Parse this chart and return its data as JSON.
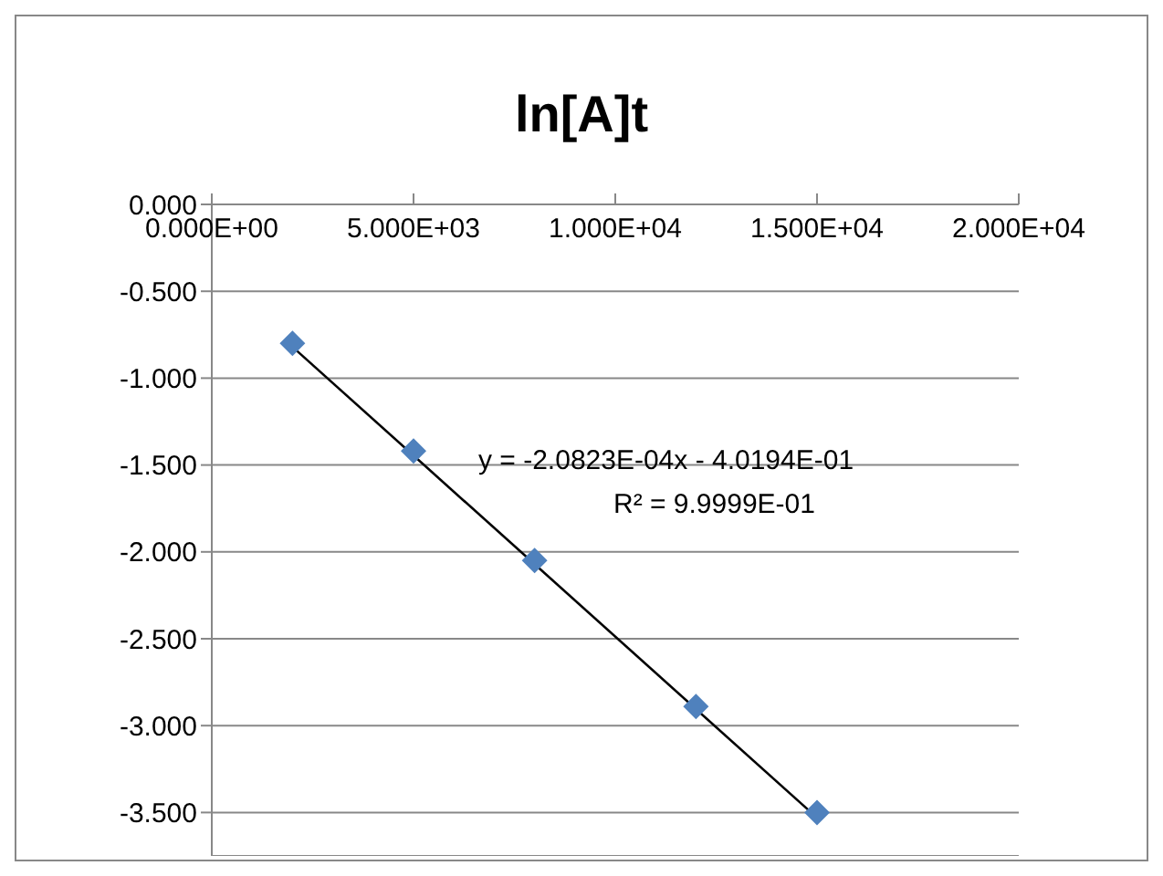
{
  "chart_data": {
    "type": "scatter",
    "title": "ln[A]t",
    "series": [
      {
        "color": "#4f81bd",
        "x": [
          2000,
          5000,
          8000,
          12000,
          15000
        ],
        "values": [
          -0.8,
          -1.42,
          -2.05,
          -2.89,
          -3.5
        ]
      },
      {
        "type": "line",
        "color": "#000000",
        "marker": "none",
        "x": [
          2000,
          15000
        ],
        "values": [
          -0.82,
          -3.53
        ]
      }
    ],
    "annotations": [
      "y = -2.0823E-04x - 4.0194E-01",
      "R² = 9.9999E-01"
    ],
    "xlim": [
      0,
      20000
    ],
    "xticks": [
      {
        "value": 0,
        "label": "0.000E+00"
      },
      {
        "value": 5000,
        "label": "5.000E+03"
      },
      {
        "value": 10000,
        "label": "1.000E+04"
      },
      {
        "value": 15000,
        "label": "1.500E+04"
      },
      {
        "value": 20000,
        "label": "2.000E+04"
      }
    ],
    "ylim": [
      -3.75,
      0
    ],
    "yticks": [
      {
        "value": 0,
        "label": "0.000"
      },
      {
        "value": -0.5,
        "label": "-0.500"
      },
      {
        "value": -1,
        "label": "-1.000"
      },
      {
        "value": -1.5,
        "label": "-1.500"
      },
      {
        "value": -2,
        "label": "-2.000"
      },
      {
        "value": -2.5,
        "label": "-2.500"
      },
      {
        "value": -3,
        "label": "-3.000"
      },
      {
        "value": -3.5,
        "label": "-3.500"
      }
    ],
    "grid": "y",
    "marker": "diamond",
    "legend": false
  }
}
